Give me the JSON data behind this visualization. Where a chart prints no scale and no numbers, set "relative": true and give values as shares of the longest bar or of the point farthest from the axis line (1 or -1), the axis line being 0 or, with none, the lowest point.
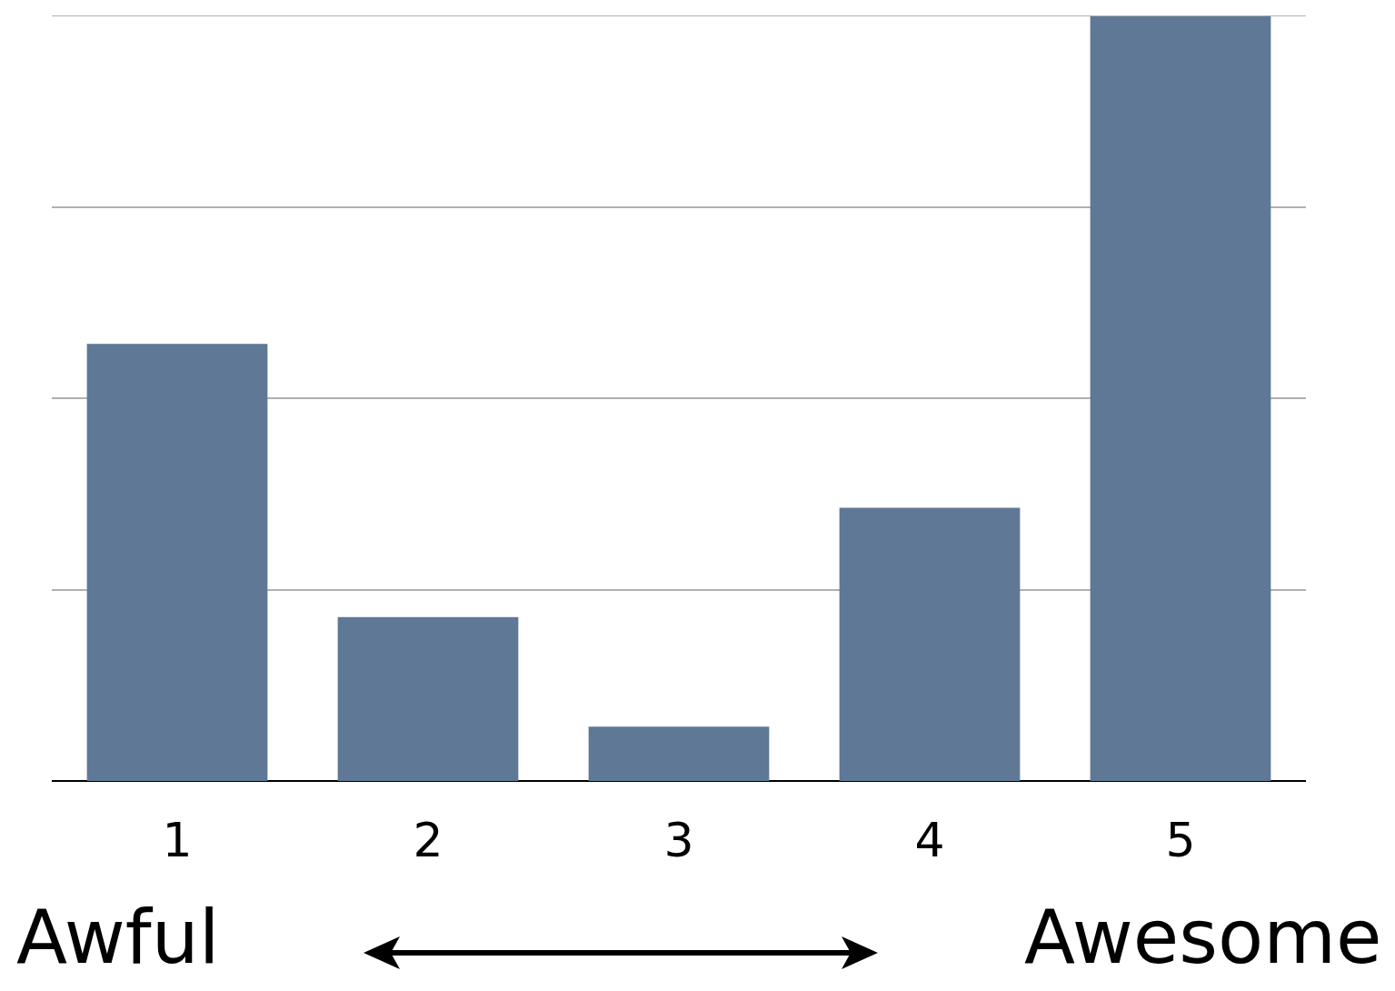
{
  "chart_data": {
    "type": "bar",
    "relative": true,
    "categories": [
      "1",
      "2",
      "3",
      "4",
      "5"
    ],
    "values": [
      0.571,
      0.214,
      0.071,
      0.357,
      1
    ],
    "color": "#5e7896",
    "grid": "y",
    "annotations": [
      "Awful",
      "Awesome"
    ]
  }
}
